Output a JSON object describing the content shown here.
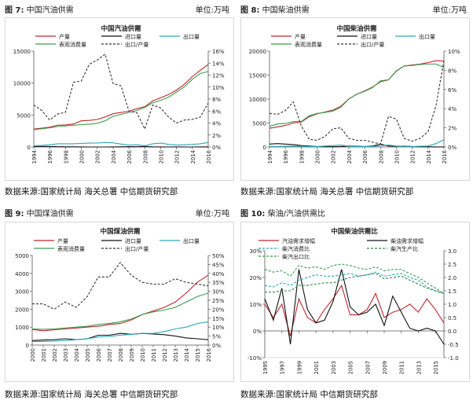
{
  "headers": {
    "fig7": {
      "label": "图 7:",
      "title": " 中国汽油供需",
      "unit": "单位:万吨"
    },
    "fig8": {
      "label": "图 8:",
      "title": " 中国柴油供需",
      "unit": "单位:万吨"
    },
    "fig9": {
      "label": "图 9:",
      "title": " 中国煤油供需",
      "unit": "单位:万吨"
    },
    "fig10": {
      "label": "图 10:",
      "title": "   柴油/汽油供需比"
    }
  },
  "sources": {
    "s1": "数据来源:国家统计局 海关总署 中信期货研究部",
    "s2": "数据来源:国家统计局 海关总署 中信期货研究部",
    "s3": "数据来源:国家统计局 海关总署 中信期货研究部",
    "s4": "数据来源:国家统计局 中信期货研究部"
  },
  "chart_data": [
    {
      "type": "line",
      "title": "中国汽油供需",
      "x": [
        1994,
        1995,
        1996,
        1997,
        1998,
        1999,
        2000,
        2001,
        2002,
        2003,
        2004,
        2005,
        2006,
        2007,
        2008,
        2009,
        2010,
        2011,
        2012,
        2013,
        2014,
        2015,
        2016
      ],
      "x_tick_labels": [
        "1994",
        "1996",
        "1998",
        "2000",
        "2002",
        "2004",
        "2006",
        "2008",
        "2010",
        "2012",
        "2014",
        "2016"
      ],
      "ylim": [
        0,
        15000
      ],
      "y_ticks": [
        "0",
        "5000",
        "10000",
        "15000"
      ],
      "y2lim": [
        0,
        0.16
      ],
      "y2_ticks": [
        "0%",
        "2%",
        "4%",
        "6%",
        "8%",
        "10%",
        "12%",
        "14%",
        "16%"
      ],
      "legend": [
        "产量",
        "进口量",
        "出口量",
        "表观消费量",
        "出口/产量"
      ],
      "series": [
        {
          "name": "产量",
          "axis": "left",
          "color": "#c0282d",
          "dash": "",
          "values": [
            2800,
            2950,
            3100,
            3400,
            3450,
            3600,
            4100,
            4150,
            4300,
            4700,
            5200,
            5400,
            5600,
            6000,
            6300,
            7200,
            7700,
            8200,
            8900,
            9800,
            11000,
            12000,
            12900
          ]
        },
        {
          "name": "进口量",
          "axis": "left",
          "color": "#111111",
          "dash": "",
          "values": [
            80,
            90,
            70,
            40,
            20,
            30,
            10,
            5,
            5,
            5,
            10,
            20,
            50,
            40,
            80,
            30,
            10,
            5,
            10,
            5,
            5,
            10,
            20
          ]
        },
        {
          "name": "出口量",
          "axis": "left",
          "color": "#2aa6b8",
          "dash": "",
          "values": [
            200,
            250,
            350,
            500,
            500,
            500,
            550,
            600,
            620,
            700,
            650,
            450,
            300,
            350,
            200,
            500,
            600,
            400,
            300,
            350,
            400,
            500,
            700
          ]
        },
        {
          "name": "表观消费量",
          "axis": "left",
          "color": "#3a9e4d",
          "dash": "",
          "values": [
            2700,
            2850,
            3000,
            3200,
            3300,
            3400,
            3500,
            3550,
            3700,
            4100,
            4800,
            5100,
            5400,
            5700,
            6200,
            6900,
            7300,
            7800,
            8600,
            9400,
            10600,
            11500,
            11800
          ]
        },
        {
          "name": "出口/产量",
          "axis": "right",
          "color": "#333333",
          "dash": "3,2",
          "values": [
            0.07,
            0.061,
            0.045,
            0.055,
            0.058,
            0.108,
            0.11,
            0.138,
            0.145,
            0.155,
            0.106,
            0.102,
            0.06,
            0.057,
            0.03,
            0.07,
            0.065,
            0.05,
            0.04,
            0.045,
            0.046,
            0.05,
            0.073
          ]
        }
      ]
    },
    {
      "type": "line",
      "title": "中国柴油供需",
      "x": [
        1994,
        1995,
        1996,
        1997,
        1998,
        1999,
        2000,
        2001,
        2002,
        2003,
        2004,
        2005,
        2006,
        2007,
        2008,
        2009,
        2010,
        2011,
        2012,
        2013,
        2014,
        2015,
        2016
      ],
      "x_tick_labels": [
        "1994",
        "1996",
        "1998",
        "2000",
        "2002",
        "2004",
        "2006",
        "2008",
        "2010",
        "2012",
        "2014",
        "2016"
      ],
      "ylim": [
        0,
        20000
      ],
      "y_ticks": [
        "0",
        "5000",
        "10000",
        "15000",
        "20000"
      ],
      "y2lim": [
        0,
        0.1
      ],
      "y2_ticks": [
        "0%",
        "2%",
        "4%",
        "6%",
        "8%",
        "10%"
      ],
      "legend": [
        "产量",
        "进口量",
        "出口量",
        "表观消费量",
        "出口/产量"
      ],
      "series": [
        {
          "name": "产量",
          "axis": "left",
          "color": "#c0282d",
          "dash": "",
          "values": [
            3900,
            4200,
            4500,
            5000,
            5200,
            6300,
            6900,
            7300,
            7700,
            8500,
            10000,
            11000,
            11700,
            12500,
            13600,
            14000,
            15900,
            16900,
            17100,
            17300,
            17600,
            18000,
            17900
          ]
        },
        {
          "name": "进口量",
          "axis": "left",
          "color": "#111111",
          "dash": "",
          "values": [
            600,
            700,
            600,
            500,
            300,
            200,
            100,
            50,
            50,
            100,
            200,
            150,
            100,
            200,
            600,
            200,
            150,
            200,
            100,
            50,
            50,
            20,
            10
          ]
        },
        {
          "name": "出口量",
          "axis": "left",
          "color": "#2aa6b8",
          "dash": "",
          "values": [
            100,
            120,
            150,
            200,
            150,
            100,
            100,
            200,
            300,
            400,
            150,
            100,
            100,
            100,
            300,
            400,
            200,
            150,
            100,
            150,
            200,
            700,
            1500
          ]
        },
        {
          "name": "表观消费量",
          "axis": "left",
          "color": "#3a9e4d",
          "dash": "",
          "values": [
            4300,
            4800,
            4900,
            5300,
            5300,
            6500,
            7000,
            7200,
            7500,
            8300,
            10000,
            11000,
            11600,
            12400,
            13800,
            14000,
            15800,
            16900,
            17000,
            17200,
            17300,
            17300,
            16600
          ]
        },
        {
          "name": "出口/产量",
          "axis": "right",
          "color": "#333333",
          "dash": "3,2",
          "values": [
            0.035,
            0.034,
            0.038,
            0.047,
            0.022,
            0.008,
            0.007,
            0.011,
            0.019,
            0.02,
            0.009,
            0.007,
            0.007,
            0.005,
            0.003,
            0.032,
            0.029,
            0.009,
            0.006,
            0.009,
            0.016,
            0.043,
            0.09
          ]
        }
      ]
    },
    {
      "type": "line",
      "title": "中国煤油供需",
      "x": [
        2000,
        2001,
        2002,
        2003,
        2004,
        2005,
        2006,
        2007,
        2008,
        2009,
        2010,
        2011,
        2012,
        2013,
        2014,
        2015,
        2016
      ],
      "x_tick_labels": [
        "2000",
        "2001",
        "2002",
        "2003",
        "2004",
        "2005",
        "2006",
        "2007",
        "2008",
        "2009",
        "2010",
        "2011",
        "2012",
        "2013",
        "2014",
        "2015",
        "2016"
      ],
      "ylim": [
        0,
        5000
      ],
      "y_ticks": [
        "0",
        "1000",
        "2000",
        "3000",
        "4000",
        "5000"
      ],
      "y2lim": [
        0,
        0.5
      ],
      "y2_ticks": [
        "0%",
        "5%",
        "10%",
        "15%",
        "20%",
        "25%",
        "30%",
        "35%",
        "40%",
        "45%",
        "50%"
      ],
      "legend": [
        "产量",
        "进口量",
        "出口量",
        "表观消费量",
        "出口/产量"
      ],
      "series": [
        {
          "name": "产量",
          "axis": "left",
          "color": "#c0282d",
          "dash": "",
          "values": [
            870,
            800,
            850,
            900,
            950,
            1000,
            1050,
            1150,
            1200,
            1400,
            1700,
            1900,
            2100,
            2400,
            2900,
            3500,
            3900
          ]
        },
        {
          "name": "进口量",
          "axis": "left",
          "color": "#111111",
          "dash": "",
          "values": [
            250,
            280,
            300,
            350,
            300,
            350,
            550,
            550,
            650,
            600,
            650,
            620,
            580,
            500,
            400,
            350,
            300
          ]
        },
        {
          "name": "出口量",
          "axis": "left",
          "color": "#2aa6b8",
          "dash": "",
          "values": [
            200,
            200,
            220,
            250,
            300,
            350,
            450,
            480,
            550,
            600,
            650,
            650,
            750,
            900,
            1000,
            1200,
            1300
          ]
        },
        {
          "name": "表观消费量",
          "axis": "left",
          "color": "#3a9e4d",
          "dash": "",
          "values": [
            900,
            880,
            900,
            950,
            1000,
            1050,
            1150,
            1200,
            1300,
            1450,
            1700,
            1850,
            1950,
            2100,
            2400,
            2700,
            2900
          ]
        },
        {
          "name": "出口/产量",
          "axis": "right",
          "color": "#333333",
          "dash": "3,2",
          "values": [
            0.23,
            0.23,
            0.2,
            0.24,
            0.21,
            0.27,
            0.38,
            0.38,
            0.46,
            0.39,
            0.35,
            0.34,
            0.34,
            0.37,
            0.35,
            0.34,
            0.33
          ]
        }
      ]
    },
    {
      "type": "line",
      "title": "中国柴油供需比",
      "x": [
        1995,
        1996,
        1997,
        1998,
        1999,
        2000,
        2001,
        2002,
        2003,
        2004,
        2005,
        2006,
        2007,
        2008,
        2009,
        2010,
        2011,
        2012,
        2013,
        2014,
        2015,
        2016
      ],
      "x_tick_labels": [
        "1995",
        "1997",
        "1999",
        "2001",
        "2003",
        "2005",
        "2007",
        "2009",
        "2011",
        "2013",
        "2015"
      ],
      "ylim": [
        -0.1,
        0.3
      ],
      "y_ticks": [
        "-10%",
        "0%",
        "10%",
        "20%",
        "30%"
      ],
      "y2lim": [
        -1.0,
        3.0
      ],
      "y2_ticks": [
        "-1.0",
        "-0.5",
        "0.0",
        "0.5",
        "1.0",
        "1.5",
        "2.0",
        "2.5",
        "3.0"
      ],
      "legend": [
        "汽油需求增幅",
        "柴油需求增幅",
        "柴汽消费比",
        "柴汽生产比",
        "柴汽出口比"
      ],
      "series": [
        {
          "name": "汽油需求增幅",
          "axis": "left",
          "color": "#c0282d",
          "dash": "",
          "values": [
            0.1,
            0.05,
            0.1,
            -0.02,
            0.12,
            0.05,
            0.03,
            0.08,
            0.12,
            0.17,
            0.06,
            0.06,
            0.08,
            0.14,
            0.05,
            0.07,
            0.08,
            0.1,
            0.07,
            0.12,
            0.08,
            0.03
          ]
        },
        {
          "name": "柴油需求增幅",
          "axis": "left",
          "color": "#111111",
          "dash": "",
          "values": [
            0.12,
            0.04,
            0.16,
            -0.05,
            0.23,
            0.08,
            0.03,
            0.04,
            0.11,
            0.23,
            0.09,
            0.06,
            0.07,
            0.1,
            0.02,
            0.13,
            0.07,
            0.01,
            0.0,
            0.01,
            0.0,
            -0.05
          ]
        },
        {
          "name": "柴汽消费比",
          "axis": "right",
          "color": "#2aa6b8",
          "dash": "3,2",
          "values": [
            1.7,
            1.65,
            1.8,
            1.7,
            1.9,
            2.0,
            2.1,
            2.05,
            2.05,
            2.1,
            2.15,
            2.05,
            2.1,
            2.2,
            2.05,
            2.1,
            2.15,
            2.0,
            1.9,
            1.65,
            1.5,
            1.4
          ]
        },
        {
          "name": "柴汽生产比",
          "axis": "right",
          "color": "#2b8a47",
          "dash": "3,2",
          "values": [
            1.45,
            1.45,
            1.5,
            1.5,
            1.7,
            1.7,
            1.75,
            1.8,
            1.8,
            1.9,
            2.0,
            2.05,
            2.1,
            2.15,
            1.95,
            2.0,
            2.05,
            1.9,
            1.75,
            1.6,
            1.5,
            1.4
          ]
        },
        {
          "name": "柴汽出口比",
          "axis": "right",
          "color": "#3a9e4d",
          "dash": "3,2",
          "values": [
            2.3,
            2.2,
            2.25,
            2.05,
            2.45,
            2.35,
            2.4,
            2.3,
            2.45,
            2.5,
            2.45,
            2.35,
            2.3,
            2.4,
            2.25,
            2.3,
            2.3,
            2.15,
            2.0,
            1.8,
            1.6,
            1.4
          ]
        }
      ]
    }
  ]
}
